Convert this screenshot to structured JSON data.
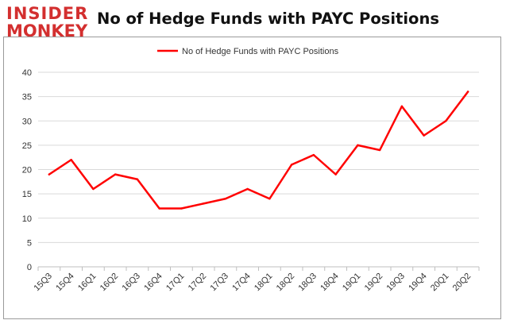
{
  "logo": {
    "line1": "INSIDER",
    "line2": "MONKEY",
    "color": "#d32f2f"
  },
  "chart_data": {
    "type": "line",
    "title": "No of Hedge Funds with PAYC Positions",
    "xlabel": "",
    "ylabel": "",
    "categories": [
      "15Q3",
      "15Q4",
      "16Q1",
      "16Q2",
      "16Q3",
      "16Q4",
      "17Q1",
      "17Q2",
      "17Q3",
      "17Q4",
      "18Q1",
      "18Q2",
      "18Q3",
      "18Q4",
      "19Q1",
      "19Q2",
      "19Q3",
      "19Q4",
      "20Q1",
      "20Q2"
    ],
    "series": [
      {
        "name": "No of Hedge Funds with PAYC Positions",
        "values": [
          19,
          22,
          16,
          19,
          18,
          12,
          12,
          13,
          14,
          16,
          14,
          21,
          23,
          19,
          25,
          24,
          33,
          27,
          30,
          36
        ],
        "color": "#ff0000"
      }
    ],
    "ylim": [
      0,
      40
    ],
    "yticks": [
      0,
      5,
      10,
      15,
      20,
      25,
      30,
      35,
      40
    ],
    "grid": "horizontal",
    "legend_position": "top-center"
  }
}
